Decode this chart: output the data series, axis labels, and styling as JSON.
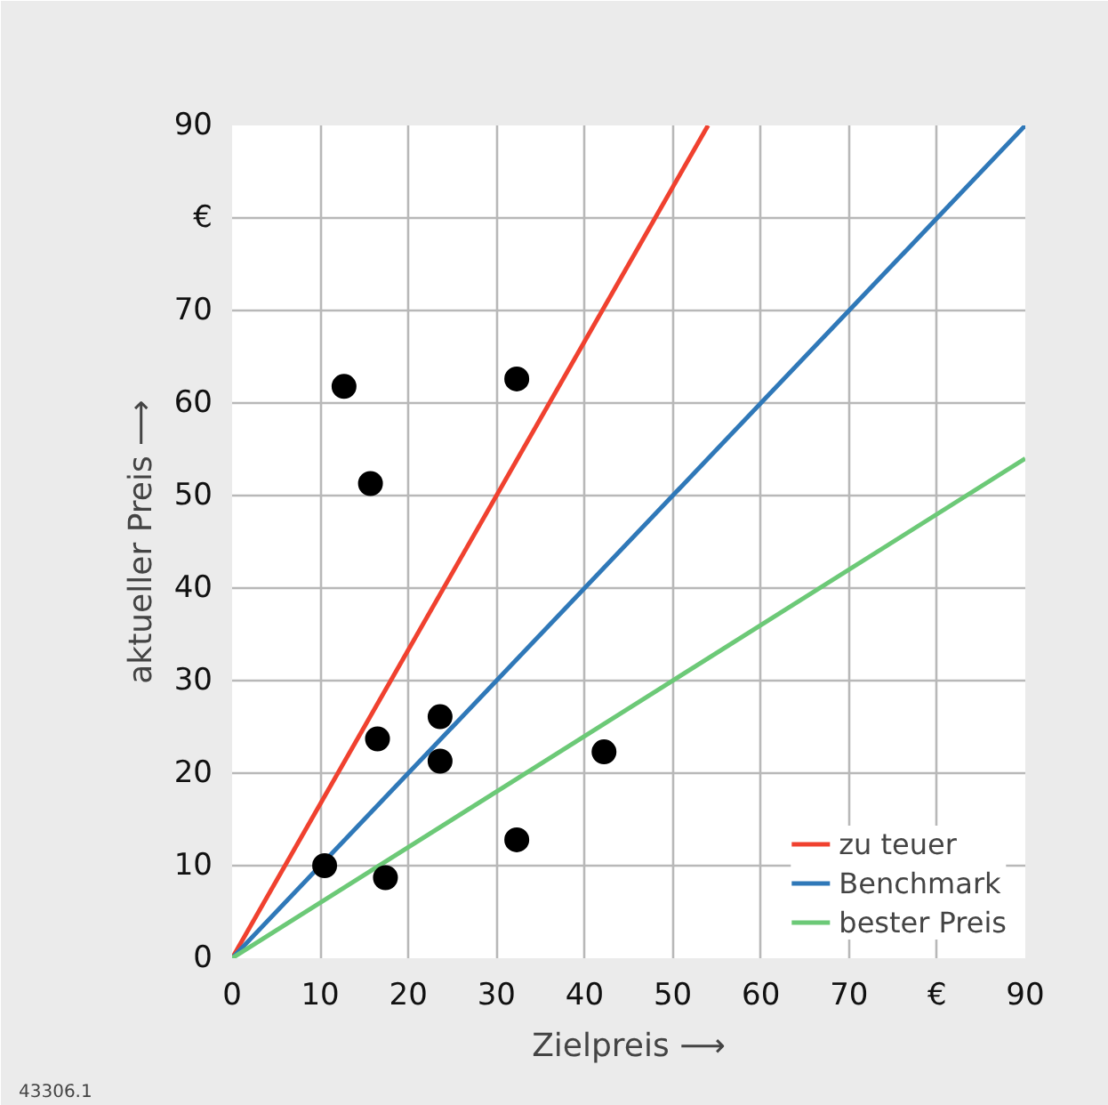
{
  "chart_data": {
    "type": "scatter",
    "xlabel": "Zielpreis ⟶",
    "ylabel": "aktueller Preis ⟶",
    "xlim": [
      0,
      90
    ],
    "ylim": [
      0,
      90
    ],
    "xticks": [
      0,
      10,
      20,
      30,
      40,
      50,
      60,
      70,
      {
        "value": 80,
        "label": "€"
      },
      90
    ],
    "yticks": [
      0,
      10,
      20,
      30,
      40,
      50,
      60,
      70,
      {
        "value": 80,
        "label": "€"
      },
      90
    ],
    "grid": true,
    "legend": "bottom right",
    "annotations": [
      "43306.1"
    ],
    "series": [
      {
        "type": "line",
        "name": "zu teuer",
        "color": "#f0412f",
        "x": [
          0,
          54
        ],
        "values": [
          0,
          90
        ]
      },
      {
        "type": "line",
        "name": "Benchmark",
        "color": "#2f78b8",
        "x": [
          0,
          90
        ],
        "values": [
          0,
          90
        ]
      },
      {
        "type": "line",
        "name": "bester Preis",
        "color": "#6cc977",
        "x": [
          0,
          90
        ],
        "values": [
          0,
          54
        ]
      },
      {
        "marker": "circle",
        "color": "#000000",
        "x": [
          10.5,
          12.7,
          15.7,
          16.5,
          17.4,
          23.6,
          23.6,
          32.3,
          32.3,
          42.2
        ],
        "values": [
          10,
          61.8,
          51.3,
          23.7,
          8.7,
          26.1,
          21.3,
          62.6,
          12.8,
          22.3
        ]
      }
    ]
  }
}
